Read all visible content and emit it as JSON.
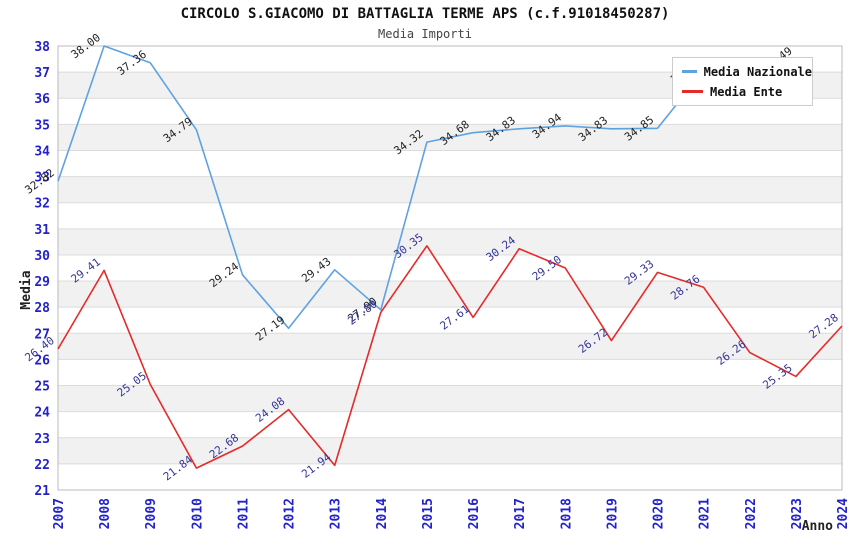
{
  "chart_data": {
    "type": "line",
    "title": "CIRCOLO S.GIACOMO DI BATTAGLIA TERME APS (c.f.91018450287)",
    "subtitle": "Media Importi",
    "xlabel": "Anno",
    "ylabel": "Media",
    "x": [
      2007,
      2008,
      2009,
      2010,
      2011,
      2012,
      2013,
      2014,
      2015,
      2016,
      2017,
      2018,
      2019,
      2020,
      2021,
      2022,
      2023,
      2024
    ],
    "ylim": [
      21,
      38
    ],
    "grid": true,
    "band_fill_even": true,
    "legend_position": "top-right",
    "series": [
      {
        "name": "Media Nazionale",
        "color": "#5FA2E0",
        "label_color": "#222222",
        "values": [
          32.82,
          38.0,
          37.36,
          34.79,
          29.24,
          27.19,
          29.43,
          27.9,
          34.32,
          34.68,
          34.83,
          34.94,
          34.83,
          34.85,
          37.05,
          null,
          37.49,
          null
        ]
      },
      {
        "name": "Media Ente",
        "color": "#E62A2A",
        "label_color": "#333399",
        "values": [
          26.4,
          29.41,
          25.05,
          21.84,
          22.68,
          24.08,
          21.94,
          27.8,
          30.35,
          27.61,
          30.24,
          29.5,
          26.72,
          29.33,
          28.76,
          26.26,
          25.35,
          27.28
        ]
      }
    ],
    "colors": {
      "tick_label": "#2222CC",
      "gridline": "#DCDCDC",
      "band": "#F1F1F1",
      "plot_border": "#BBBBBB",
      "axis_title": "#222222"
    }
  }
}
